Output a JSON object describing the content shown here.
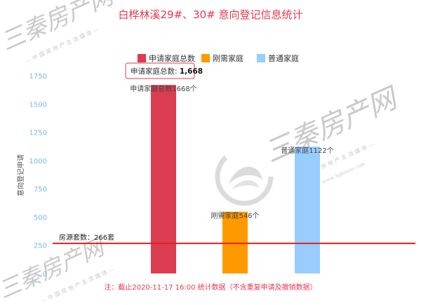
{
  "chart_data": {
    "type": "bar",
    "title": "白桦林溪29#、30# 意向登记信息统计",
    "ylabel": "意向登记申请",
    "ylim": [
      0,
      1750
    ],
    "yticks": [
      0,
      250,
      500,
      750,
      1000,
      1250,
      1500,
      1750
    ],
    "categories": [
      "申请家庭总数",
      "刚需家庭",
      "普通家庭"
    ],
    "series": [
      {
        "name": "申请家庭总数",
        "value": 1668,
        "color": "#dc3c50",
        "label": "申请家庭总数1668个"
      },
      {
        "name": "刚需家庭",
        "value": 546,
        "color": "#ff9900",
        "label": "刚需家庭546个"
      },
      {
        "name": "普通家庭",
        "value": 1122,
        "color": "#99ccff",
        "label": "普通家庭1122个"
      }
    ],
    "reference_line": {
      "value": 266,
      "color": "#e02020",
      "label": "房源套数：266套"
    },
    "legend_position": "top",
    "grid": false,
    "tooltip": {
      "label": "申请家庭总数: ",
      "value": "1,668",
      "border_color": "#dc3c50"
    },
    "note": "注：截止2020-11-17 16:00 统计数据（不含重复申请及撤销数据）"
  },
  "watermark": {
    "text": "三秦房产网",
    "subtext": "— 中 国 房 地 产 主 流 媒 体 —",
    "url": "www.3qhouse.com"
  }
}
